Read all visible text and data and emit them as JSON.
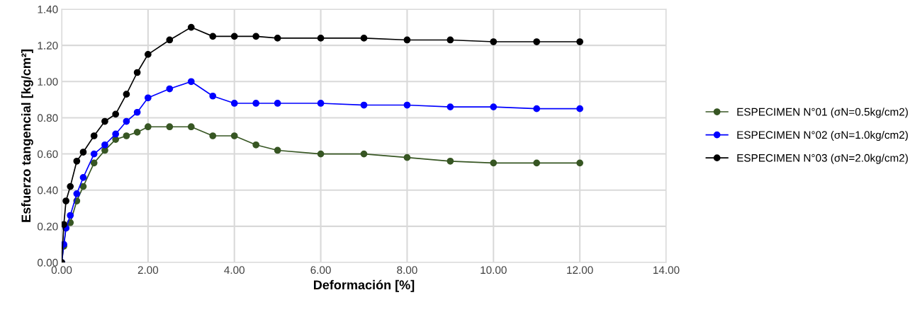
{
  "chart_data": {
    "type": "line",
    "xlabel": "Deformación [%]",
    "ylabel": "Esfuerzo tangencial [kg/cm²]",
    "x": [
      0,
      0.05,
      0.1,
      0.2,
      0.35,
      0.5,
      0.75,
      1.0,
      1.25,
      1.5,
      1.75,
      2.0,
      2.5,
      3.0,
      3.5,
      4.0,
      4.5,
      5,
      6,
      7,
      8,
      9,
      10,
      11,
      12
    ],
    "series": [
      {
        "name": "ESPECIMEN N°01 (σN=0.5kg/cm2)",
        "color": "#375623",
        "values": [
          0,
          0.09,
          0.19,
          0.22,
          0.34,
          0.42,
          0.55,
          0.62,
          0.68,
          0.7,
          0.72,
          0.75,
          0.75,
          0.75,
          0.7,
          0.7,
          0.65,
          0.62,
          0.6,
          0.6,
          0.58,
          0.56,
          0.55,
          0.55,
          0.55
        ]
      },
      {
        "name": "ESPECIMEN N°02 (σN=1.0kg/cm2)",
        "color": "#0000ff",
        "values": [
          0,
          0.1,
          0.19,
          0.26,
          0.38,
          0.47,
          0.6,
          0.65,
          0.71,
          0.78,
          0.83,
          0.91,
          0.96,
          1.0,
          0.92,
          0.88,
          0.88,
          0.88,
          0.88,
          0.87,
          0.87,
          0.86,
          0.86,
          0.85,
          0.85
        ]
      },
      {
        "name": "ESPECIMEN N°03 (σN=2.0kg/cm2)",
        "color": "#000000",
        "values": [
          0,
          0.21,
          0.34,
          0.42,
          0.56,
          0.61,
          0.7,
          0.78,
          0.82,
          0.93,
          1.05,
          1.15,
          1.23,
          1.3,
          1.25,
          1.25,
          1.25,
          1.24,
          1.24,
          1.24,
          1.23,
          1.23,
          1.22,
          1.22,
          1.22
        ]
      }
    ],
    "xlim": [
      0,
      14
    ],
    "xticks": [
      {
        "value": 0,
        "label": "0.00"
      },
      {
        "value": 2,
        "label": "2.00"
      },
      {
        "value": 4,
        "label": "4.00"
      },
      {
        "value": 6,
        "label": "6.00"
      },
      {
        "value": 8,
        "label": "8.00"
      },
      {
        "value": 10,
        "label": "10.00"
      },
      {
        "value": 12,
        "label": "12.00"
      },
      {
        "value": 14,
        "label": "14.00"
      }
    ],
    "ylim": [
      0,
      1.4
    ],
    "yticks": [
      {
        "value": 0,
        "label": "0.00"
      },
      {
        "value": 0.2,
        "label": "0.20"
      },
      {
        "value": 0.4,
        "label": "0.40"
      },
      {
        "value": 0.6,
        "label": "0.60"
      },
      {
        "value": 0.8,
        "label": "0.80"
      },
      {
        "value": 1.0,
        "label": "1.00"
      },
      {
        "value": 1.2,
        "label": "1.20"
      },
      {
        "value": 1.4,
        "label": "1.40"
      }
    ],
    "grid": true,
    "legend": "right",
    "marker": "circle",
    "line_style": "solid"
  }
}
